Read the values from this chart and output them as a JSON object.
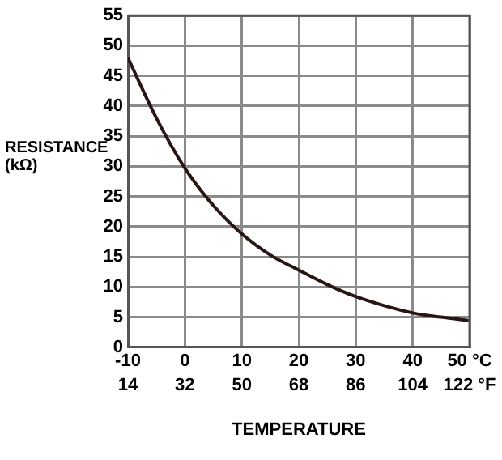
{
  "chart_data": {
    "type": "line",
    "xlabel": "TEMPERATURE",
    "ylabel": "RESISTANCE\n(kΩ)",
    "x": [
      -10,
      -5,
      0,
      5,
      10,
      15,
      20,
      25,
      30,
      35,
      40,
      45,
      50
    ],
    "series": [
      {
        "color": "#2a1414",
        "values": [
          48,
          38,
          29.7,
          23.5,
          18.8,
          15.3,
          12.8,
          10.4,
          8.4,
          6.9,
          5.7,
          5,
          4.4
        ]
      }
    ],
    "xlim": [
      -10,
      50
    ],
    "xticks": [
      -10,
      0,
      10,
      20,
      30,
      40,
      {
        "value": 50,
        "label": "50 °C"
      }
    ],
    "x2lim": [
      14,
      122
    ],
    "x2ticks": [
      14,
      32,
      50,
      68,
      86,
      104,
      {
        "value": 122,
        "label": "122 °F"
      }
    ],
    "ylim": [
      0,
      55
    ],
    "yticks": [
      0,
      5,
      10,
      15,
      20,
      25,
      30,
      35,
      40,
      45,
      50,
      55
    ],
    "grid": true,
    "legend": false,
    "marker": "none",
    "line_style": "solid"
  }
}
